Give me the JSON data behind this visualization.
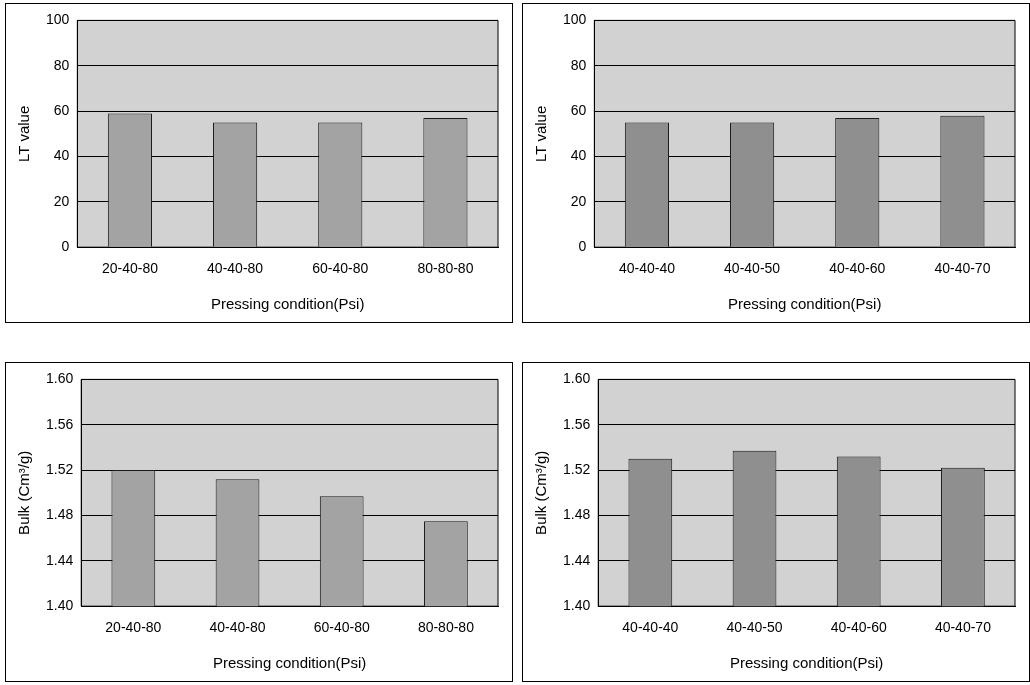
{
  "chart_data": [
    {
      "type": "bar",
      "xlabel": "Pressing condition(Psi)",
      "ylabel": "LT value",
      "categories": [
        "20-40-80",
        "40-40-80",
        "60-40-80",
        "80-80-80"
      ],
      "values": [
        59,
        55,
        55,
        57
      ],
      "color": "#a3a3a3",
      "ylim": [
        0,
        100
      ],
      "yticks": [
        0,
        20,
        40,
        60,
        80,
        100
      ],
      "grid": "y",
      "legend": false
    },
    {
      "type": "bar",
      "xlabel": "Pressing condition(Psi)",
      "ylabel": "LT value",
      "categories": [
        "40-40-40",
        "40-40-50",
        "40-40-60",
        "40-40-70"
      ],
      "values": [
        55,
        55,
        57,
        58
      ],
      "color": "#8f8f8f",
      "ylim": [
        0,
        100
      ],
      "yticks": [
        0,
        20,
        40,
        60,
        80,
        100
      ],
      "grid": "y",
      "legend": false
    },
    {
      "type": "bar",
      "xlabel": "Pressing condition(Psi)",
      "ylabel": "Bulk (Cm³/g)",
      "categories": [
        "20-40-80",
        "40-40-80",
        "60-40-80",
        "80-80-80"
      ],
      "values": [
        1.52,
        1.512,
        1.497,
        1.475
      ],
      "color": "#a3a3a3",
      "ylim": [
        1.4,
        1.6
      ],
      "yticks": [
        {
          "value": 1.4,
          "label": "1.40"
        },
        {
          "value": 1.44,
          "label": "1.44"
        },
        {
          "value": 1.48,
          "label": "1.48"
        },
        {
          "value": 1.52,
          "label": "1.52"
        },
        {
          "value": 1.56,
          "label": "1.56"
        },
        {
          "value": 1.6,
          "label": "1.60"
        }
      ],
      "grid": "y",
      "legend": false
    },
    {
      "type": "bar",
      "xlabel": "Pressing condition(Psi)",
      "ylabel": "Bulk (Cm³/g)",
      "categories": [
        "40-40-40",
        "40-40-50",
        "40-40-60",
        "40-40-70"
      ],
      "values": [
        1.53,
        1.537,
        1.532,
        1.522
      ],
      "color": "#8f8f8f",
      "ylim": [
        1.4,
        1.6
      ],
      "yticks": [
        {
          "value": 1.4,
          "label": "1.40"
        },
        {
          "value": 1.44,
          "label": "1.44"
        },
        {
          "value": 1.48,
          "label": "1.48"
        },
        {
          "value": 1.52,
          "label": "1.52"
        },
        {
          "value": 1.56,
          "label": "1.56"
        },
        {
          "value": 1.6,
          "label": "1.60"
        }
      ],
      "grid": "y",
      "legend": false
    }
  ]
}
